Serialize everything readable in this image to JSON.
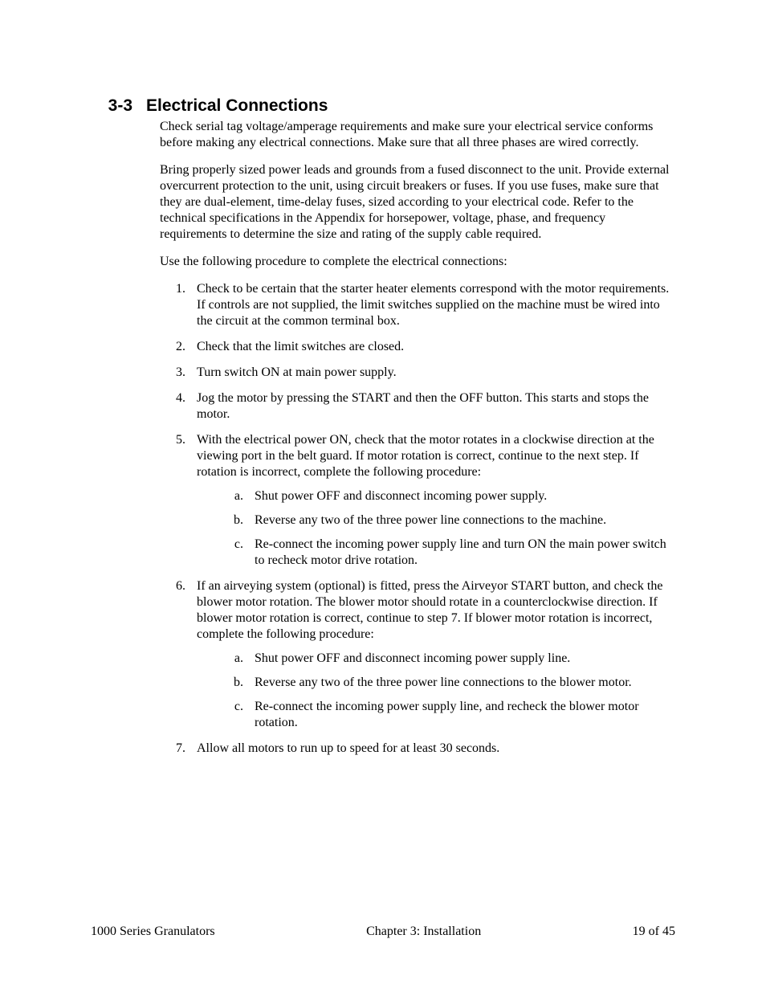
{
  "heading": {
    "num": "3-3",
    "title": "Electrical Connections"
  },
  "paras": {
    "p1": "Check serial tag voltage/amperage requirements and make sure your electrical service conforms before making any electrical connections. Make sure that all three phases are wired correctly.",
    "p2": "Bring properly sized power leads and grounds from a fused disconnect to the unit. Provide external overcurrent protection to the unit, using circuit breakers or fuses. If you use fuses, make sure that they are dual-element, time-delay fuses, sized according to your electrical code. Refer to the technical specifications in the Appendix for horsepower, voltage, phase, and frequency requirements to determine the size and rating of the supply cable required.",
    "p3": "Use the following procedure to complete the electrical connections:"
  },
  "list": {
    "i1": "Check to be certain that the starter heater elements correspond with the motor requirements. If controls are not supplied, the limit switches supplied on the machine must be wired into the circuit at the common terminal box.",
    "i2": "Check that the limit switches are closed.",
    "i3": "Turn switch ON at main power supply.",
    "i4": "Jog the motor by pressing the START and then the OFF button. This starts and stops the motor.",
    "i5": "With the electrical power ON, check that the motor rotates in a clockwise direction at the viewing port in the belt guard. If motor rotation is correct, continue to the next step. If rotation is incorrect, complete the following procedure:",
    "i5a": "Shut power OFF and disconnect incoming power supply.",
    "i5b": "Reverse any two of the three power line connections to the machine.",
    "i5c": "Re-connect the incoming power supply line and turn ON the main power switch to recheck motor drive rotation.",
    "i6": "If an airveying system (optional) is fitted, press the Airveyor START button, and check the blower motor rotation. The blower motor should rotate in a counterclockwise direction. If blower motor rotation is correct, continue to step 7. If blower motor rotation is incorrect, complete the following procedure:",
    "i6a": "Shut power OFF and disconnect incoming power supply line.",
    "i6b": "Reverse any two of the three power line connections to the blower motor.",
    "i6c": "Re-connect the incoming power supply line, and recheck the blower motor rotation.",
    "i7": "Allow all motors to run up to speed for at least 30 seconds."
  },
  "footer": {
    "left": "1000 Series Granulators",
    "center": "Chapter 3: Installation",
    "right": "19 of 45"
  }
}
